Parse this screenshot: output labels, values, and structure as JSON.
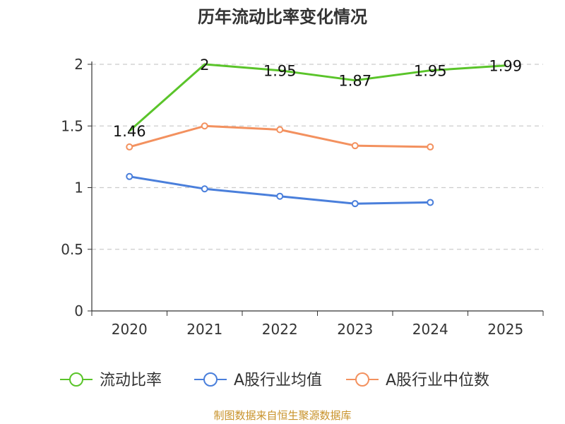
{
  "chart_data": {
    "type": "line",
    "title": "历年流动比率变化情况",
    "categories": [
      "2020",
      "2021",
      "2022",
      "2023",
      "2024",
      "2025"
    ],
    "ylim": [
      0,
      2
    ],
    "yticks": [
      0,
      0.5,
      1,
      1.5,
      2
    ],
    "ytick_labels": [
      "0",
      "0.5",
      "1",
      "1.5",
      "2"
    ],
    "grid": "horizontal-dashed",
    "legend_position": "bottom",
    "series": [
      {
        "name": "流动比率",
        "color": "#5ac42a",
        "marker": "none",
        "values": [
          1.46,
          2,
          1.95,
          1.87,
          1.95,
          1.99
        ],
        "labels": [
          "1.46",
          "2",
          "1.95",
          "1.87",
          "1.95",
          "1.99"
        ]
      },
      {
        "name": "A股行业均值",
        "color": "#4a7fdb",
        "marker": "circle",
        "values": [
          1.09,
          0.99,
          0.93,
          0.87,
          0.88,
          null
        ]
      },
      {
        "name": "A股行业中位数",
        "color": "#f3915f",
        "marker": "circle",
        "values": [
          1.33,
          1.5,
          1.47,
          1.34,
          1.33,
          null
        ]
      }
    ],
    "source": "制图数据来自恒生聚源数据库"
  }
}
